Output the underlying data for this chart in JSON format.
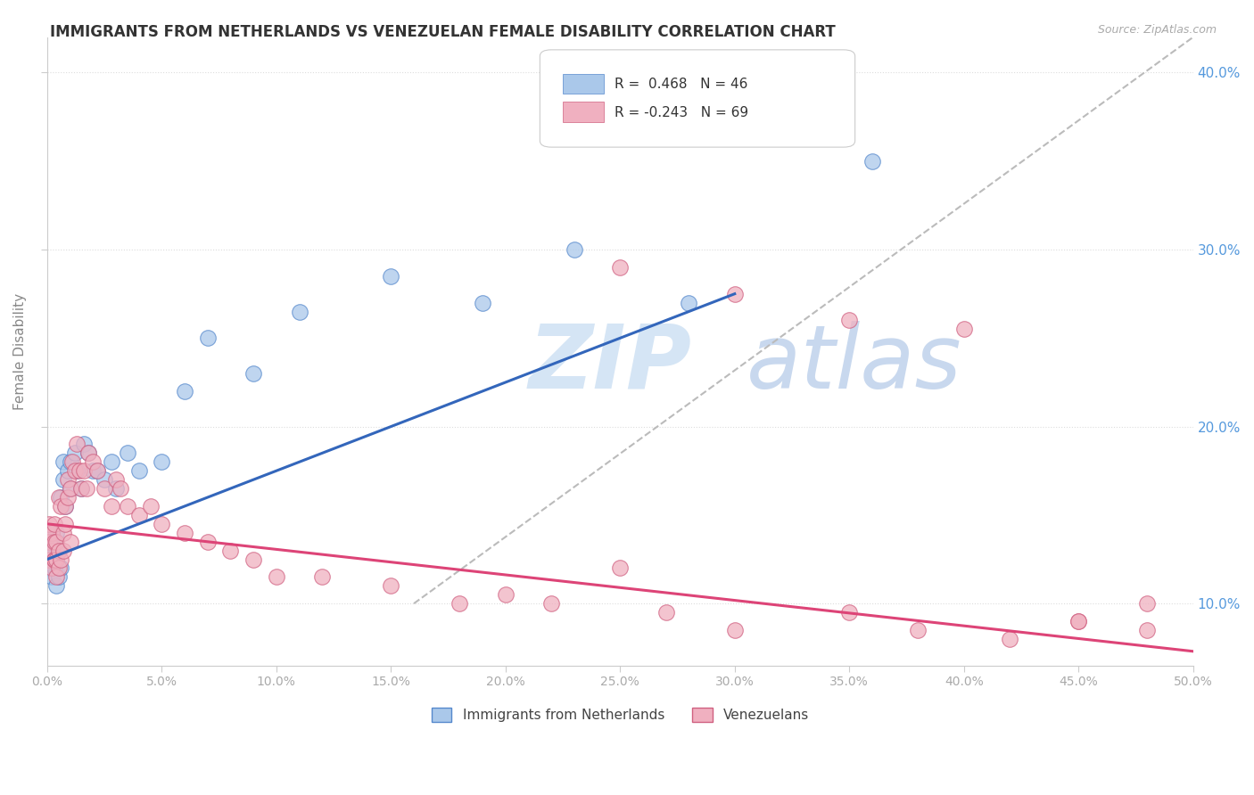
{
  "title": "IMMIGRANTS FROM NETHERLANDS VS VENEZUELAN FEMALE DISABILITY CORRELATION CHART",
  "source_text": "Source: ZipAtlas.com",
  "ylabel": "Female Disability",
  "legend_label1": "Immigrants from Netherlands",
  "legend_label2": "Venezuelans",
  "r1": 0.468,
  "n1": 46,
  "r2": -0.243,
  "n2": 69,
  "xlim": [
    0.0,
    0.5
  ],
  "ylim": [
    0.065,
    0.42
  ],
  "xticks": [
    0.0,
    0.05,
    0.1,
    0.15,
    0.2,
    0.25,
    0.3,
    0.35,
    0.4,
    0.45,
    0.5
  ],
  "yticks": [
    0.1,
    0.2,
    0.3,
    0.4
  ],
  "background_color": "#ffffff",
  "blue_dot_face": "#aac8ea",
  "blue_dot_edge": "#5588cc",
  "pink_dot_face": "#f0b0c0",
  "pink_dot_edge": "#d06080",
  "blue_line_color": "#3366bb",
  "pink_line_color": "#dd4477",
  "gray_dash_color": "#bbbbbb",
  "title_color": "#333333",
  "axis_label_color": "#888888",
  "tick_label_color": "#aaaaaa",
  "right_tick_color": "#5599dd",
  "watermark_color": "#d8e8f5",
  "blue_x": [
    0.0005,
    0.001,
    0.001,
    0.001,
    0.002,
    0.002,
    0.002,
    0.002,
    0.003,
    0.003,
    0.003,
    0.004,
    0.004,
    0.004,
    0.005,
    0.005,
    0.006,
    0.006,
    0.007,
    0.007,
    0.008,
    0.009,
    0.01,
    0.01,
    0.012,
    0.013,
    0.015,
    0.016,
    0.018,
    0.02,
    0.022,
    0.025,
    0.028,
    0.03,
    0.035,
    0.04,
    0.05,
    0.06,
    0.07,
    0.09,
    0.11,
    0.15,
    0.19,
    0.23,
    0.28,
    0.36
  ],
  "blue_y": [
    0.135,
    0.14,
    0.13,
    0.12,
    0.125,
    0.14,
    0.13,
    0.115,
    0.12,
    0.135,
    0.125,
    0.11,
    0.125,
    0.14,
    0.115,
    0.13,
    0.12,
    0.16,
    0.17,
    0.18,
    0.155,
    0.175,
    0.165,
    0.18,
    0.185,
    0.175,
    0.165,
    0.19,
    0.185,
    0.175,
    0.175,
    0.17,
    0.18,
    0.165,
    0.185,
    0.175,
    0.18,
    0.22,
    0.25,
    0.23,
    0.265,
    0.285,
    0.27,
    0.3,
    0.27,
    0.35
  ],
  "pink_x": [
    0.0005,
    0.001,
    0.001,
    0.001,
    0.002,
    0.002,
    0.002,
    0.003,
    0.003,
    0.003,
    0.003,
    0.004,
    0.004,
    0.004,
    0.005,
    0.005,
    0.005,
    0.006,
    0.006,
    0.007,
    0.007,
    0.008,
    0.008,
    0.009,
    0.009,
    0.01,
    0.01,
    0.011,
    0.012,
    0.013,
    0.014,
    0.015,
    0.016,
    0.017,
    0.018,
    0.02,
    0.022,
    0.025,
    0.028,
    0.03,
    0.032,
    0.035,
    0.04,
    0.045,
    0.05,
    0.06,
    0.07,
    0.08,
    0.09,
    0.1,
    0.12,
    0.15,
    0.18,
    0.2,
    0.22,
    0.25,
    0.27,
    0.3,
    0.35,
    0.38,
    0.42,
    0.45,
    0.48,
    0.25,
    0.3,
    0.35,
    0.4,
    0.45,
    0.48
  ],
  "pink_y": [
    0.14,
    0.135,
    0.145,
    0.125,
    0.13,
    0.14,
    0.12,
    0.125,
    0.135,
    0.125,
    0.145,
    0.115,
    0.125,
    0.135,
    0.12,
    0.13,
    0.16,
    0.125,
    0.155,
    0.13,
    0.14,
    0.145,
    0.155,
    0.16,
    0.17,
    0.135,
    0.165,
    0.18,
    0.175,
    0.19,
    0.175,
    0.165,
    0.175,
    0.165,
    0.185,
    0.18,
    0.175,
    0.165,
    0.155,
    0.17,
    0.165,
    0.155,
    0.15,
    0.155,
    0.145,
    0.14,
    0.135,
    0.13,
    0.125,
    0.115,
    0.115,
    0.11,
    0.1,
    0.105,
    0.1,
    0.12,
    0.095,
    0.085,
    0.095,
    0.085,
    0.08,
    0.09,
    0.085,
    0.29,
    0.275,
    0.26,
    0.255,
    0.09,
    0.1
  ],
  "blue_line_x0": 0.0,
  "blue_line_y0": 0.125,
  "blue_line_x1": 0.3,
  "blue_line_y1": 0.275,
  "pink_line_x0": 0.0,
  "pink_line_y0": 0.145,
  "pink_line_x1": 0.5,
  "pink_line_y1": 0.073,
  "gray_line_x0": 0.16,
  "gray_line_y0": 0.1,
  "gray_line_x1": 0.5,
  "gray_line_y1": 0.42
}
